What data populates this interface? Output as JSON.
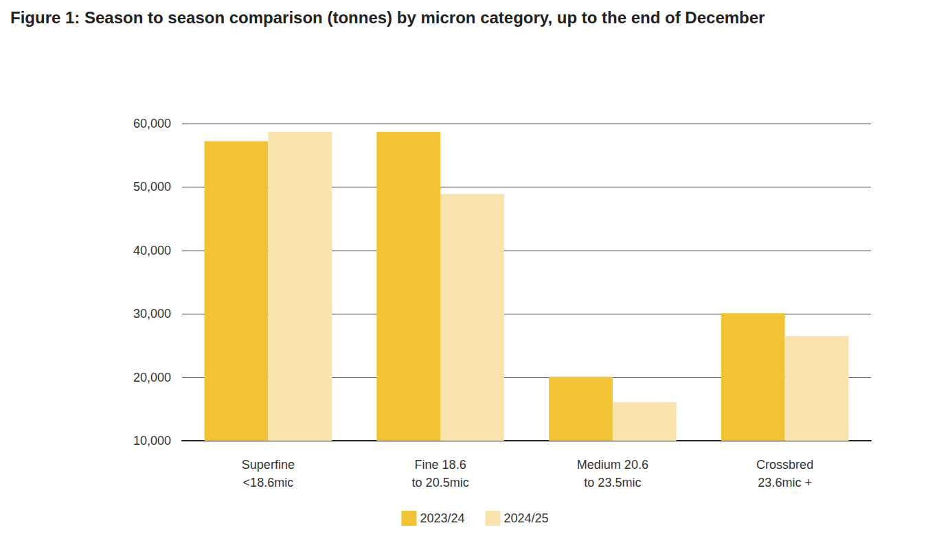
{
  "chart_data": {
    "type": "bar",
    "title": "Figure 1: Season to season comparison (tonnes) by micron category, up to the end of December",
    "categories": [
      "Superfine\n<18.6mic",
      "Fine 18.6\nto 20.5mic",
      "Medium 20.6\nto 23.5mic",
      "Crossbred\n23.6mic +"
    ],
    "series": [
      {
        "name": "2023/24",
        "color": "#f2c435",
        "values": [
          57200,
          58700,
          20100,
          30100
        ]
      },
      {
        "name": "2024/25",
        "color": "#f9e4ad",
        "values": [
          58700,
          48900,
          16100,
          26500
        ]
      }
    ],
    "ylim": [
      10000,
      60000
    ],
    "yticks": [
      {
        "value": 10000,
        "label": "10,000"
      },
      {
        "value": 20000,
        "label": "20,000"
      },
      {
        "value": 30000,
        "label": "30,000"
      },
      {
        "value": 40000,
        "label": "40,000"
      },
      {
        "value": 50000,
        "label": "50,000"
      },
      {
        "value": 60000,
        "label": "60,000"
      }
    ],
    "grid": true,
    "legend": "bottom"
  }
}
